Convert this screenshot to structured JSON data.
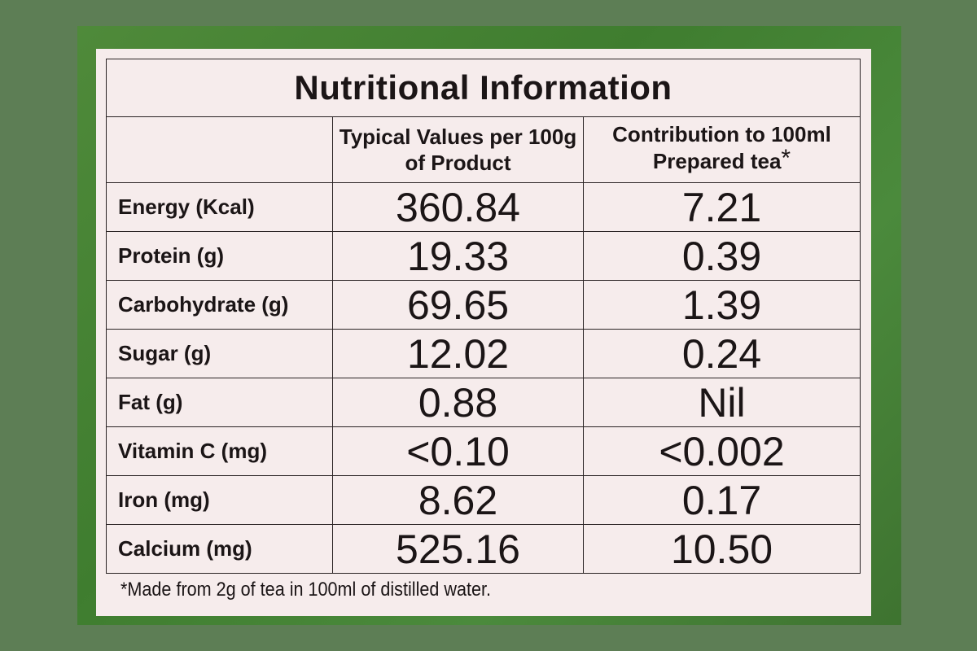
{
  "title": "Nutritional Information",
  "headers": {
    "col2": "Typical Values per 100g of Product",
    "col3": "Contribution to 100ml Prepared tea",
    "col3_mark": "*"
  },
  "rows": [
    {
      "name": "Energy (Kcal)",
      "per100g": "360.84",
      "per100ml": "7.21"
    },
    {
      "name": "Protein (g)",
      "per100g": "19.33",
      "per100ml": "0.39"
    },
    {
      "name": "Carbohydrate (g)",
      "per100g": "69.65",
      "per100ml": "1.39"
    },
    {
      "name": "Sugar (g)",
      "per100g": "12.02",
      "per100ml": "0.24"
    },
    {
      "name": "Fat (g)",
      "per100g": "0.88",
      "per100ml": "Nil"
    },
    {
      "name": "Vitamin C (mg)",
      "per100g": "<0.10",
      "per100ml": "<0.002"
    },
    {
      "name": "Iron (mg)",
      "per100g": "8.62",
      "per100ml": "0.17"
    },
    {
      "name": "Calcium (mg)",
      "per100g": "525.16",
      "per100ml": "10.50"
    }
  ],
  "footnote": "*Made from 2g of tea in 100ml of distilled water."
}
